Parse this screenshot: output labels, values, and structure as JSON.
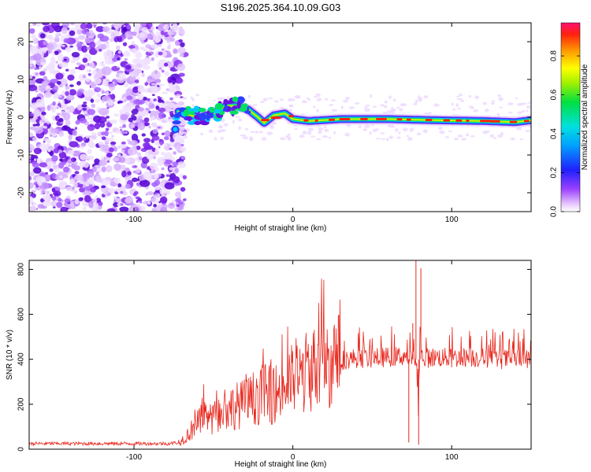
{
  "title": "S196.2025.364.10.09.G03",
  "chart_data": [
    {
      "type": "heatmap",
      "xlabel": "Height of straight line (km)",
      "ylabel": "Frequency (Hz)",
      "xlim": [
        -166,
        150
      ],
      "ylim": [
        -25,
        25
      ],
      "xticks": [
        -100,
        0,
        100
      ],
      "yticks": [
        -20,
        -10,
        0,
        10,
        20
      ],
      "colorbar": {
        "label": "Normalized spectral amplitude",
        "range": [
          0,
          0.97
        ],
        "ticks": [
          0.0,
          0.2,
          0.4,
          0.6,
          0.8
        ],
        "colormap": "rainbow"
      },
      "noise_region_x": [
        -166,
        -73
      ],
      "signal_track": [
        {
          "x": -72,
          "y": 1.5
        },
        {
          "x": -65,
          "y": 0.5
        },
        {
          "x": -58,
          "y": 0
        },
        {
          "x": -50,
          "y": 1
        },
        {
          "x": -42,
          "y": 3
        },
        {
          "x": -35,
          "y": 3
        },
        {
          "x": -28,
          "y": 2
        },
        {
          "x": -22,
          "y": 0
        },
        {
          "x": -18,
          "y": -1.5
        },
        {
          "x": -12,
          "y": 0.5
        },
        {
          "x": -5,
          "y": 1
        },
        {
          "x": 0,
          "y": -0.5
        },
        {
          "x": 10,
          "y": -1
        },
        {
          "x": 30,
          "y": -0.5
        },
        {
          "x": 60,
          "y": -0.5
        },
        {
          "x": 90,
          "y": -0.8
        },
        {
          "x": 120,
          "y": -1
        },
        {
          "x": 140,
          "y": -1.3
        },
        {
          "x": 150,
          "y": -0.8
        }
      ]
    },
    {
      "type": "line",
      "xlabel": "Height of straight line (km)",
      "ylabel": "SNR (10 * v/v)",
      "xlim": [
        -166,
        150
      ],
      "ylim": [
        0,
        840
      ],
      "xticks": [
        -100,
        0,
        100
      ],
      "yticks": [
        0,
        200,
        400,
        600,
        800
      ],
      "color": "#e8281e",
      "series": [
        {
          "name": "SNR",
          "x": [
            -166,
            -150,
            -130,
            -110,
            -90,
            -78,
            -72,
            -68,
            -62,
            -56,
            -50,
            -44,
            -38,
            -32,
            -26,
            -20,
            -14,
            -8,
            -2,
            4,
            10,
            16,
            22,
            28,
            34,
            40,
            50,
            60,
            70,
            76,
            78,
            79,
            80,
            81,
            82,
            84,
            90,
            100,
            110,
            120,
            130,
            140,
            150
          ],
          "y": [
            25,
            25,
            25,
            25,
            25,
            25,
            30,
            50,
            100,
            140,
            130,
            160,
            190,
            200,
            220,
            250,
            240,
            260,
            300,
            320,
            350,
            370,
            380,
            395,
            400,
            405,
            405,
            410,
            415,
            400,
            380,
            150,
            420,
            420,
            405,
            405,
            410,
            405,
            410,
            405,
            400,
            400,
            400
          ]
        }
      ],
      "spikes": [
        {
          "x": 77.5,
          "y": 845
        },
        {
          "x": 79.2,
          "y": 20
        },
        {
          "x": 80.6,
          "y": 805
        },
        {
          "x": 75.5,
          "y": 560
        },
        {
          "x": 73,
          "y": 30
        }
      ]
    }
  ]
}
